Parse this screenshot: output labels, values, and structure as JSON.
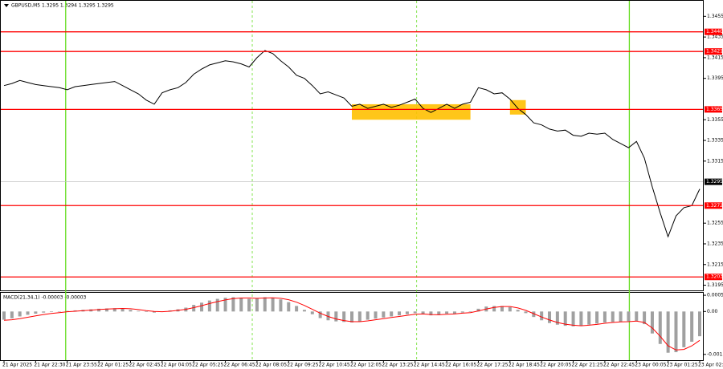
{
  "chart_data": [
    {
      "type": "line",
      "title": "GBPUSD,M5  1.3295 1.3294 1.3295 1.3295",
      "color": "#000000",
      "categories": [
        "21 Apr 2025",
        null,
        null,
        null,
        "21 Apr 22:30",
        null,
        null,
        null,
        "21 Apr 23:55",
        null,
        null,
        null,
        "22 Apr 01:25",
        null,
        null,
        null,
        "22 Apr 02:45",
        null,
        null,
        null,
        "22 Apr 04:05",
        null,
        null,
        null,
        "22 Apr 05:25",
        null,
        null,
        null,
        "22 Apr 06:45",
        null,
        null,
        null,
        "22 Apr 08:05",
        null,
        null,
        null,
        "22 Apr 09:25",
        null,
        null,
        null,
        "22 Apr 10:45",
        null,
        null,
        null,
        "22 Apr 12:05",
        null,
        null,
        null,
        "22 Apr 13:25",
        null,
        null,
        null,
        "22 Apr 14:45",
        null,
        null,
        null,
        "22 Apr 16:05",
        null,
        null,
        null,
        "22 Apr 17:25",
        null,
        null,
        null,
        "22 Apr 18:45",
        null,
        null,
        null,
        "22 Apr 20:05",
        null,
        null,
        null,
        "22 Apr 21:25",
        null,
        null,
        null,
        "22 Apr 22:45",
        null,
        null,
        null,
        "23 Apr 00:05",
        null,
        null,
        null,
        "23 Apr 01:25",
        null,
        null,
        null,
        "23 Apr 02:45"
      ],
      "values": [
        1.3388,
        1.339,
        1.3393,
        1.3391,
        1.3389,
        1.3388,
        1.3387,
        1.3386,
        1.3384,
        1.3387,
        1.3388,
        1.3389,
        1.339,
        1.3391,
        1.3392,
        1.3388,
        1.3384,
        1.338,
        1.3374,
        1.337,
        1.3381,
        1.3384,
        1.3386,
        1.3391,
        1.3399,
        1.3404,
        1.3408,
        1.341,
        1.3412,
        1.3411,
        1.3409,
        1.3406,
        1.3415,
        1.3422,
        1.3419,
        1.3412,
        1.3406,
        1.3398,
        1.3395,
        1.3388,
        1.338,
        1.3382,
        1.3379,
        1.3376,
        1.3368,
        1.337,
        1.3366,
        1.3368,
        1.337,
        1.3367,
        1.3369,
        1.3372,
        1.3375,
        1.3366,
        1.3362,
        1.3366,
        1.337,
        1.3366,
        1.337,
        1.3372,
        1.3386,
        1.3384,
        1.338,
        1.3381,
        1.3375,
        1.3366,
        1.336,
        1.3352,
        1.335,
        1.3346,
        1.3344,
        1.3345,
        1.334,
        1.3339,
        1.3342,
        1.3341,
        1.3342,
        1.3336,
        1.3332,
        1.3328,
        1.3334,
        1.3318,
        1.329,
        1.3265,
        1.3242,
        1.3262,
        1.327,
        1.3272,
        1.3288
      ],
      "ylim": [
        1.319,
        1.347
      ],
      "yticks": [
        1.3455,
        1.3435,
        1.3415,
        1.3395,
        1.3355,
        1.3335,
        1.3315,
        1.3255,
        1.3235,
        1.3215,
        1.3195
      ],
      "levels": [
        {
          "value": 1.344,
          "label": "1.3440"
        },
        1.3421,
        1.3365,
        1.3272,
        1.3203
      ],
      "level_color": "#ff0000",
      "current_price": 1.3295,
      "zones": [
        {
          "x": [
            44,
            59
          ],
          "y": [
            1.3355,
            1.337
          ]
        },
        {
          "x": [
            64,
            66
          ],
          "y": [
            1.336,
            1.3374
          ]
        }
      ],
      "zone_color": "#ffc000",
      "vlines_solid": [
        7.8,
        79.1
      ],
      "vlines_dashed": [
        31.4,
        52.2
      ],
      "vline_color": "#66dd22"
    },
    {
      "type": "bar",
      "title": "MACD(21,34,1) -0.00003 -0.00003",
      "color": "#a0a0a0",
      "signal_color": "#ff0000",
      "values": [
        -0.0003,
        -0.00025,
        -0.00018,
        -0.00012,
        -8e-05,
        -4e-05,
        -2e-05,
        0,
        2e-05,
        4e-05,
        6e-05,
        8e-05,
        0.0001,
        0.00011,
        0.00012,
        0.0001,
        6e-05,
        2e-05,
        -2e-05,
        -4e-05,
        0,
        4e-05,
        8e-05,
        0.00014,
        0.00024,
        0.00032,
        0.0004,
        0.00046,
        0.0005,
        0.00052,
        0.0005,
        0.00046,
        0.00048,
        0.00052,
        0.0005,
        0.00044,
        0.00034,
        0.0002,
        6e-05,
        -0.0001,
        -0.00024,
        -0.00032,
        -0.00036,
        -0.00038,
        -0.0004,
        -0.00036,
        -0.0003,
        -0.00026,
        -0.00022,
        -0.00018,
        -0.00014,
        -0.0001,
        -6e-05,
        -0.0001,
        -0.00014,
        -0.00012,
        -8e-05,
        -8e-05,
        -4e-05,
        -2e-05,
        0.0001,
        0.00018,
        0.0002,
        0.0002,
        0.00016,
        6e-05,
        -6e-05,
        -0.0002,
        -0.00032,
        -0.00042,
        -0.00048,
        -0.00052,
        -0.00054,
        -0.00052,
        -0.00048,
        -0.00044,
        -0.0004,
        -0.00038,
        -0.00038,
        -0.00036,
        -0.00034,
        -0.00046,
        -0.0008,
        -0.00118,
        -0.0015,
        -0.00148,
        -0.0013,
        -0.0011,
        -0.0009
      ],
      "signal": [
        -0.00032,
        -0.0003,
        -0.00026,
        -0.00021,
        -0.00016,
        -0.00011,
        -7e-05,
        -4e-05,
        -1e-05,
        1e-05,
        3e-05,
        5e-05,
        7e-05,
        9e-05,
        0.0001,
        0.00011,
        0.0001,
        7e-05,
        3e-05,
        0,
        -1e-05,
        1e-05,
        4e-05,
        8e-05,
        0.00014,
        0.00021,
        0.00029,
        0.00036,
        0.00042,
        0.00047,
        0.00049,
        0.00049,
        0.00048,
        0.00049,
        0.0005,
        0.00048,
        0.00043,
        0.00034,
        0.00022,
        8e-05,
        -6e-05,
        -0.00018,
        -0.00027,
        -0.00033,
        -0.00037,
        -0.00037,
        -0.00034,
        -0.0003,
        -0.00026,
        -0.00022,
        -0.00018,
        -0.00014,
        -0.0001,
        -9e-05,
        -0.00011,
        -0.00012,
        -0.0001,
        -9e-05,
        -6e-05,
        -4e-05,
        2e-05,
        9e-05,
        0.00015,
        0.00018,
        0.00018,
        0.00013,
        4e-05,
        -8e-05,
        -0.0002,
        -0.00031,
        -0.0004,
        -0.00046,
        -0.0005,
        -0.00052,
        -0.0005,
        -0.00047,
        -0.00043,
        -0.0004,
        -0.00038,
        -0.00037,
        -0.00035,
        -0.0004,
        -0.0006,
        -0.0009,
        -0.00125,
        -0.0014,
        -0.00138,
        -0.00125,
        -0.00105
      ],
      "ylim": [
        -0.0018,
        0.00068
      ],
      "yticks": [
        0.00059,
        {
          "value": 0,
          "label": "0.00"
        },
        -0.00156
      ]
    }
  ]
}
